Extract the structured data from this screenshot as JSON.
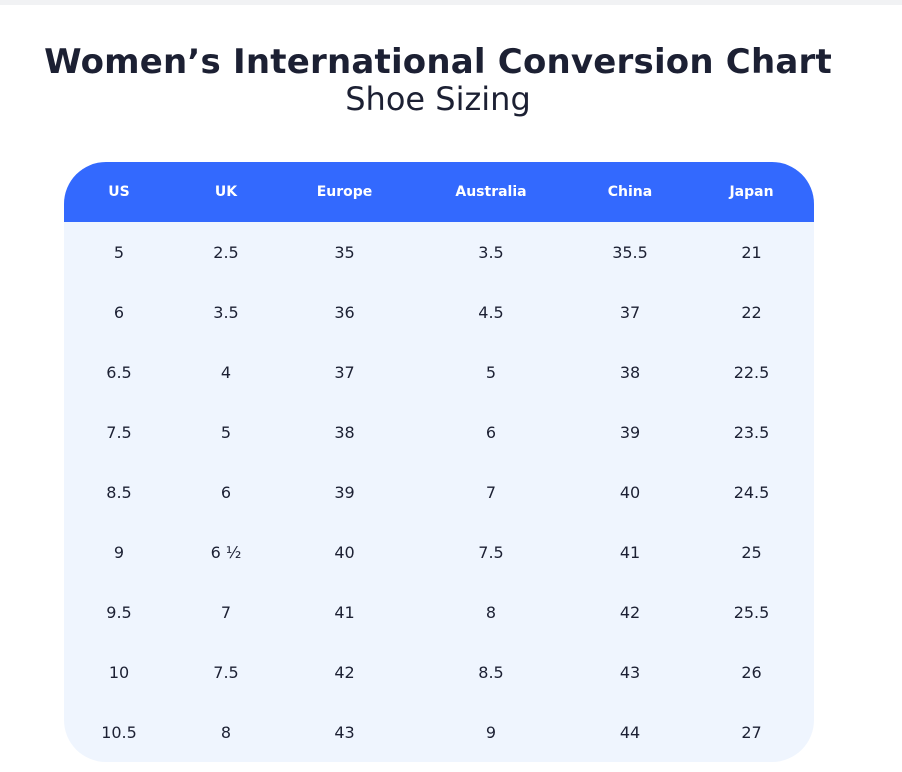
{
  "heading": {
    "title": "Women’s International Conversion Chart",
    "subtitle": "Shoe Sizing"
  },
  "colors": {
    "header_bg": "#3369fe",
    "body_bg": "#eff5fe",
    "text": "#1c2033"
  },
  "table": {
    "headers": [
      "US",
      "UK",
      "Europe",
      "Australia",
      "China",
      "Japan"
    ],
    "rows": [
      [
        "5",
        "2.5",
        "35",
        "3.5",
        "35.5",
        "21"
      ],
      [
        "6",
        "3.5",
        "36",
        "4.5",
        "37",
        "22"
      ],
      [
        "6.5",
        "4",
        "37",
        "5",
        "38",
        "22.5"
      ],
      [
        "7.5",
        "5",
        "38",
        "6",
        "39",
        "23.5"
      ],
      [
        "8.5",
        "6",
        "39",
        "7",
        "40",
        "24.5"
      ],
      [
        "9",
        "6 ½",
        "40",
        "7.5",
        "41",
        "25"
      ],
      [
        "9.5",
        "7",
        "41",
        "8",
        "42",
        "25.5"
      ],
      [
        "10",
        "7.5",
        "42",
        "8.5",
        "43",
        "26"
      ],
      [
        "10.5",
        "8",
        "43",
        "9",
        "44",
        "27"
      ]
    ]
  }
}
